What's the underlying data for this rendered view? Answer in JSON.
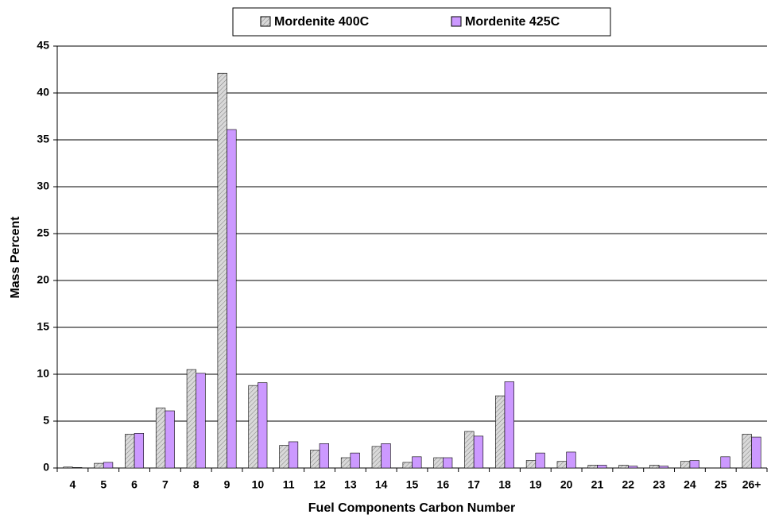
{
  "chart_data": {
    "type": "bar",
    "xlabel": "Fuel Components Carbon Number",
    "ylabel": "Mass Percent",
    "categories": [
      "4",
      "5",
      "6",
      "7",
      "8",
      "9",
      "10",
      "11",
      "12",
      "13",
      "14",
      "15",
      "16",
      "17",
      "18",
      "19",
      "20",
      "21",
      "22",
      "23",
      "24",
      "25",
      "26+"
    ],
    "series": [
      {
        "name": "Mordenite 400C",
        "color": "#d9d9d9",
        "hatch": true,
        "values": [
          0.1,
          0.5,
          3.6,
          6.4,
          10.5,
          42.1,
          8.8,
          2.4,
          1.9,
          1.1,
          2.3,
          0.6,
          1.1,
          3.9,
          7.7,
          0.8,
          0.7,
          0.3,
          0.3,
          0.3,
          0.7,
          0,
          3.6
        ]
      },
      {
        "name": "Mordenite 425C",
        "color": "#cc99ff",
        "hatch": false,
        "values": [
          0.05,
          0.6,
          3.7,
          6.1,
          10.1,
          36.1,
          9.1,
          2.8,
          2.6,
          1.6,
          2.6,
          1.2,
          1.1,
          3.4,
          9.2,
          1.6,
          1.7,
          0.3,
          0.2,
          0.2,
          0.8,
          1.2,
          3.3
        ]
      }
    ],
    "ylim": [
      0,
      45
    ],
    "yticks": [
      0,
      5,
      10,
      15,
      20,
      25,
      30,
      35,
      40,
      45
    ],
    "grid": true,
    "legend": "top"
  }
}
